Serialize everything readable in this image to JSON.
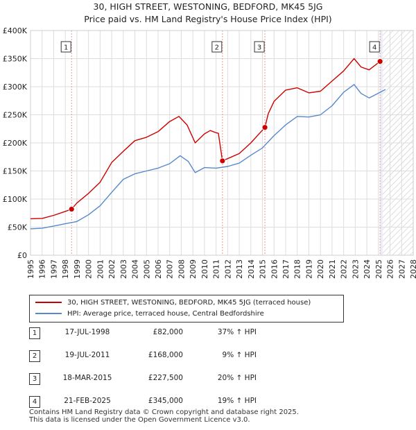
{
  "colors": {
    "property": "#cc0000",
    "hpi": "#5588cc",
    "grid": "#dddddd",
    "vline": "#ee9999",
    "shade": "#e8eef8"
  },
  "header": {
    "title": "30, HIGH STREET, WESTONING, BEDFORD, MK45 5JG",
    "subtitle": "Price paid vs. HM Land Registry's House Price Index (HPI)"
  },
  "chart_data": {
    "type": "line",
    "title": "Price paid vs. HM Land Registry's House Price Index (HPI)",
    "xlim": [
      1995,
      2028
    ],
    "ylim": [
      0,
      400000
    ],
    "x_ticks": [
      "1995",
      "1996",
      "1997",
      "1998",
      "1999",
      "2000",
      "2001",
      "2002",
      "2003",
      "2004",
      "2005",
      "2006",
      "2007",
      "2008",
      "2009",
      "2010",
      "2011",
      "2012",
      "2013",
      "2014",
      "2015",
      "2016",
      "2017",
      "2018",
      "2019",
      "2020",
      "2021",
      "2022",
      "2023",
      "2024",
      "2025",
      "2026",
      "2027",
      "2028"
    ],
    "y_ticks": [
      {
        "value": 0,
        "label": "£0"
      },
      {
        "value": 50000,
        "label": "£50K"
      },
      {
        "value": 100000,
        "label": "£100K"
      },
      {
        "value": 150000,
        "label": "£150K"
      },
      {
        "value": 200000,
        "label": "£200K"
      },
      {
        "value": 250000,
        "label": "£250K"
      },
      {
        "value": 300000,
        "label": "£300K"
      },
      {
        "value": 350000,
        "label": "£350K"
      },
      {
        "value": 400000,
        "label": "£400K"
      }
    ],
    "forecast_from": 2025.35,
    "series": [
      {
        "name": "30, HIGH STREET, WESTONING, BEDFORD, MK45 5JG (terraced house)",
        "color": "#cc0000",
        "x": [
          1995,
          1996,
          1997,
          1998,
          1998.54,
          1999,
          2000,
          2001,
          2002,
          2003,
          2004,
          2005,
          2006,
          2007,
          2007.8,
          2008.5,
          2009.2,
          2010,
          2010.5,
          2011.0,
          2011.2,
          2011.55,
          2012,
          2013,
          2014,
          2015.21,
          2015.5,
          2016,
          2017,
          2018,
          2019,
          2020,
          2021,
          2022,
          2022.9,
          2023.5,
          2024.2,
          2025.14,
          2025.4
        ],
        "y": [
          65000,
          65500,
          71000,
          78000,
          82000,
          93000,
          110000,
          130000,
          165000,
          185000,
          204000,
          210000,
          220000,
          238000,
          247000,
          232000,
          200000,
          216000,
          222000,
          218000,
          217000,
          168000,
          172000,
          181000,
          200000,
          227500,
          252000,
          274000,
          294000,
          298000,
          289000,
          292000,
          310000,
          328000,
          350000,
          335000,
          330000,
          345000,
          347000
        ]
      },
      {
        "name": "HPI: Average price, terraced house, Central Bedfordshire",
        "color": "#5588cc",
        "x": [
          1995,
          1996,
          1997,
          1998,
          1999,
          2000,
          2001,
          2002,
          2003,
          2004,
          2005,
          2006,
          2007,
          2007.9,
          2008.6,
          2009.2,
          2010,
          2011,
          2012,
          2013,
          2014,
          2015,
          2016,
          2017,
          2018,
          2019,
          2020,
          2021,
          2022,
          2022.9,
          2023.5,
          2024.2,
          2025.14,
          2025.6
        ],
        "y": [
          47000,
          48000,
          52000,
          56000,
          60000,
          72000,
          88000,
          112000,
          135000,
          145000,
          150000,
          155000,
          163000,
          177000,
          167000,
          147000,
          156000,
          155000,
          158000,
          164000,
          178000,
          191000,
          213000,
          232000,
          247000,
          246000,
          250000,
          266000,
          290000,
          304000,
          288000,
          280000,
          290000,
          295000
        ]
      }
    ],
    "sale_markers": [
      {
        "label": "1",
        "x": 1998.54,
        "y": 82000
      },
      {
        "label": "2",
        "x": 2011.55,
        "y": 168000
      },
      {
        "label": "3",
        "x": 2015.21,
        "y": 227500
      },
      {
        "label": "4",
        "x": 2025.14,
        "y": 345000
      }
    ]
  },
  "legend": {
    "property_label": "30, HIGH STREET, WESTONING, BEDFORD, MK45 5JG (terraced house)",
    "hpi_label": "HPI: Average price, terraced house, Central Bedfordshire"
  },
  "sales": [
    {
      "num": "1",
      "date": "17-JUL-1998",
      "price": "£82,000",
      "hpi": "37% ↑ HPI"
    },
    {
      "num": "2",
      "date": "19-JUL-2011",
      "price": "£168,000",
      "hpi": "9% ↑ HPI"
    },
    {
      "num": "3",
      "date": "18-MAR-2015",
      "price": "£227,500",
      "hpi": "20% ↑ HPI"
    },
    {
      "num": "4",
      "date": "21-FEB-2025",
      "price": "£345,000",
      "hpi": "19% ↑ HPI"
    }
  ],
  "footer": {
    "line1": "Contains HM Land Registry data © Crown copyright and database right 2025.",
    "line2": "This data is licensed under the Open Government Licence v3.0."
  }
}
